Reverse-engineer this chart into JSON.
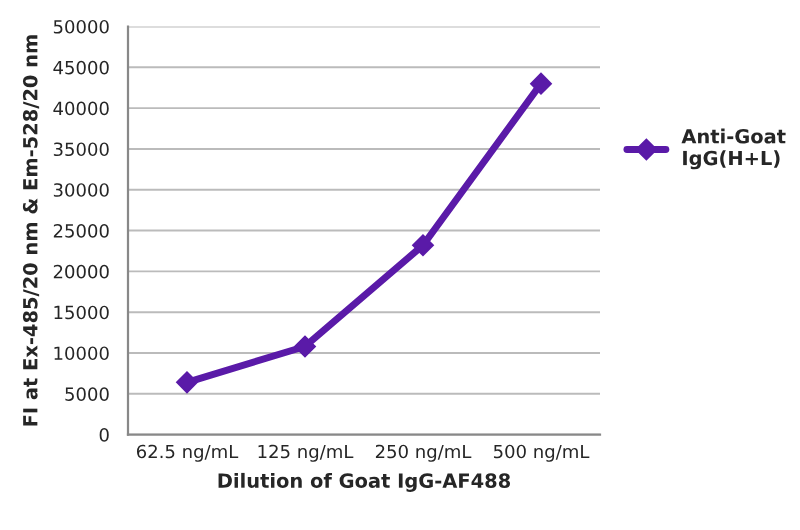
{
  "chart_data": {
    "type": "line",
    "xlabel": "Dilution of Goat IgG-AF488",
    "ylabel": "FI at Ex-485/20 nm & Em-528/20 nm",
    "categories": [
      "62.5 ng/mL",
      "125 ng/mL",
      "250 ng/mL",
      "500 ng/mL"
    ],
    "series": [
      {
        "name": "Anti-Goat\nIgG(H+L)",
        "color": "#5a1aa8",
        "values": [
          6400,
          10800,
          23200,
          43000
        ]
      }
    ],
    "ylim": [
      0,
      50000
    ],
    "yticks": [
      0,
      5000,
      10000,
      15000,
      20000,
      25000,
      30000,
      35000,
      40000,
      45000,
      50000
    ],
    "grid": "y",
    "legend": "right",
    "marker": "diamond",
    "line_style": "solid"
  }
}
